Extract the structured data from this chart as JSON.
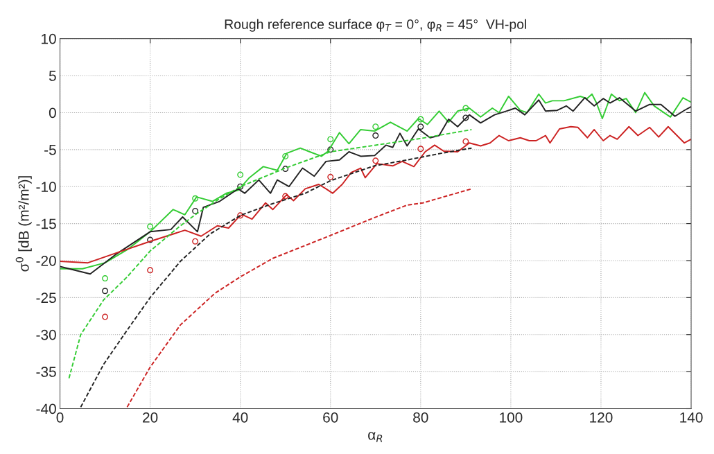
{
  "chart_data": {
    "type": "line",
    "title": "Rough reference surface φ$_{T}$ = 0°, φ$_{R}$ = 45°  VH-pol",
    "xlabel": "α$_{R}$",
    "ylabel": "σ$^{0}$ [dB (m²/m²)]",
    "xlim": [
      0,
      140
    ],
    "ylim": [
      -40,
      10
    ],
    "xticks": [
      0,
      20,
      40,
      60,
      80,
      100,
      120,
      140
    ],
    "yticks": [
      -40,
      -35,
      -30,
      -25,
      -20,
      -15,
      -10,
      -5,
      0,
      5,
      10
    ],
    "grid": true,
    "legend": false,
    "series": [
      {
        "color": "#33cc33",
        "line_style": "solid",
        "marker": "none",
        "x": [
          0,
          5,
          10,
          15,
          20,
          25.1,
          27.7,
          30.3,
          33.8,
          36.9,
          39.5,
          42,
          45.1,
          48.2,
          50.3,
          53.3,
          55.4,
          58,
          59.5,
          62,
          64.1,
          66.7,
          69.8,
          73.3,
          77,
          79.5,
          81.5,
          84.1,
          86.2,
          88.2,
          90.8,
          93.3,
          95.9,
          97.4,
          99.5,
          102.1,
          103.6,
          106.2,
          107.7,
          109.2,
          111.8,
          115.4,
          116.9,
          118,
          119,
          120.3,
          122.3,
          124.1,
          125.6,
          127.7,
          129.7,
          131.8,
          135.4,
          138.2,
          140
        ],
        "values": [
          -21.1,
          -21.1,
          -20.3,
          -18.5,
          -16.1,
          -13.1,
          -13.8,
          -11.4,
          -12.0,
          -10.9,
          -10.5,
          -8.8,
          -7.3,
          -7.8,
          -5.5,
          -4.8,
          -5.3,
          -5.9,
          -5.2,
          -2.7,
          -4.2,
          -2.3,
          -2.5,
          -1.3,
          -2.5,
          -0.8,
          -1.6,
          0.2,
          -1.3,
          0.2,
          0.6,
          -0.6,
          0.6,
          0,
          2.2,
          0.3,
          0,
          2.5,
          1.3,
          1.6,
          1.6,
          2.2,
          1.9,
          2.5,
          1.3,
          -0.8,
          2.5,
          1.6,
          1.9,
          0,
          2.7,
          0.9,
          -0.6,
          2.0,
          1.4
        ]
      },
      {
        "color": "#222222",
        "line_style": "solid",
        "marker": "none",
        "x": [
          0,
          6.7,
          12.3,
          20,
          24.6,
          27.2,
          30.5,
          31.8,
          35.4,
          39.5,
          41,
          44.1,
          46.7,
          48.2,
          50.8,
          53.8,
          56.4,
          59,
          62,
          64.1,
          66.7,
          69.8,
          72.3,
          73.8,
          75.4,
          77,
          79.5,
          82.1,
          84.1,
          86.2,
          88.2,
          90.8,
          93.3,
          96.4,
          99,
          101,
          103.1,
          106.2,
          107.7,
          110.3,
          112.3,
          113.8,
          116.4,
          118.5,
          120.5,
          122,
          124.1,
          127.7,
          130.8,
          133.3,
          136.4,
          138.5,
          140
        ],
        "values": [
          -20.8,
          -21.8,
          -19.2,
          -16.1,
          -15.8,
          -14.1,
          -16.1,
          -12.8,
          -12.0,
          -10.3,
          -10.9,
          -9.1,
          -10.9,
          -9.1,
          -10,
          -7.5,
          -8.6,
          -6.6,
          -6.4,
          -5.3,
          -5.9,
          -5.8,
          -4.4,
          -4.7,
          -2.8,
          -4.5,
          -2.2,
          -3.4,
          -3.1,
          -0.9,
          -1.9,
          -0.3,
          -1.4,
          -0.3,
          0.2,
          0.6,
          -0.3,
          1.7,
          0.2,
          0.3,
          0.9,
          0.2,
          2.0,
          0.9,
          1.9,
          1.3,
          2.0,
          0.2,
          1.1,
          1.1,
          -0.5,
          0.3,
          0.8
        ]
      },
      {
        "color": "#cc2222",
        "line_style": "solid",
        "marker": "none",
        "x": [
          0,
          6.2,
          12.3,
          20,
          27.7,
          31.3,
          34.9,
          37.4,
          39.5,
          40.5,
          42.6,
          45.6,
          47.2,
          50.3,
          51.8,
          54.4,
          57.4,
          59,
          60.5,
          62.6,
          64.6,
          66.7,
          67.7,
          70.3,
          73.8,
          75.9,
          78.5,
          81,
          83.1,
          85.1,
          88.2,
          90.8,
          93.3,
          95.4,
          97.4,
          99.5,
          102.1,
          104.1,
          105.6,
          107.7,
          108.7,
          110.8,
          113.3,
          114.9,
          117,
          118.5,
          120.5,
          122,
          123.6,
          126.2,
          128.2,
          130.8,
          132.8,
          134.9,
          138.5,
          140
        ],
        "values": [
          -20.1,
          -20.3,
          -19.0,
          -17.4,
          -15.9,
          -16.7,
          -15.3,
          -15.6,
          -14.2,
          -13.8,
          -14.4,
          -12.2,
          -13.1,
          -11.1,
          -11.9,
          -10.3,
          -9.7,
          -10.3,
          -10.9,
          -9.7,
          -8.1,
          -7.5,
          -8.8,
          -6.9,
          -7.2,
          -6.6,
          -7.3,
          -5.3,
          -4.4,
          -5.2,
          -5.3,
          -4.1,
          -4.5,
          -4.1,
          -3.1,
          -3.8,
          -3.4,
          -3.8,
          -3.8,
          -3.1,
          -4.1,
          -2.2,
          -1.9,
          -2.0,
          -3.4,
          -2.3,
          -3.8,
          -3.1,
          -3.6,
          -1.9,
          -3.1,
          -2.0,
          -3.3,
          -1.9,
          -4.1,
          -3.6
        ]
      },
      {
        "color": "#33cc33",
        "line_style": "dashed",
        "marker": "none",
        "x": [
          2,
          4.6,
          9.7,
          14.9,
          20,
          26.7,
          30,
          35,
          40,
          50,
          60,
          70,
          80,
          91.3
        ],
        "values": [
          -35.9,
          -30,
          -25.3,
          -22.2,
          -18.7,
          -15.3,
          -13.8,
          -11.8,
          -10,
          -7.5,
          -5.3,
          -4.4,
          -3.5,
          -2.3
        ]
      },
      {
        "color": "#222222",
        "line_style": "dashed",
        "marker": "none",
        "x": [
          4.6,
          9.7,
          14.9,
          20,
          26.7,
          33.3,
          40,
          47.2,
          54.4,
          60,
          69.7,
          77,
          84.6,
          91.3
        ],
        "values": [
          -39.8,
          -34,
          -29.4,
          -25,
          -20.1,
          -16.4,
          -13.9,
          -12.3,
          -10.9,
          -9.2,
          -7.2,
          -6.4,
          -5.5,
          -4.8
        ]
      },
      {
        "color": "#cc2222",
        "line_style": "dashed",
        "marker": "none",
        "x": [
          14.9,
          20,
          26.7,
          34.4,
          40,
          47.2,
          60,
          69.7,
          77,
          80.5,
          91.3
        ],
        "values": [
          -39.8,
          -34.4,
          -28.7,
          -24.4,
          -22.2,
          -19.7,
          -16.6,
          -14.2,
          -12.5,
          -12.2,
          -10.3
        ]
      },
      {
        "type": "scatter",
        "color": "#33cc33",
        "marker": "circle",
        "x": [
          10,
          20,
          30,
          40,
          50,
          60,
          70,
          80,
          90
        ],
        "values": [
          -22.4,
          -15.4,
          -11.6,
          -8.4,
          -5.9,
          -3.6,
          -1.9,
          -0.9,
          0.6
        ]
      },
      {
        "type": "scatter",
        "color": "#222222",
        "marker": "circle",
        "x": [
          10,
          20,
          30,
          40,
          50,
          60,
          70,
          80,
          90
        ],
        "values": [
          -24.1,
          -17.2,
          -13.3,
          -10,
          -7.6,
          -5.0,
          -3.1,
          -1.9,
          -0.7
        ]
      },
      {
        "type": "scatter",
        "color": "#cc2222",
        "marker": "circle",
        "x": [
          10,
          20,
          30,
          40,
          50,
          60,
          70,
          80,
          90
        ],
        "values": [
          -27.6,
          -21.3,
          -17.4,
          -13.9,
          -11.3,
          -8.7,
          -6.5,
          -4.9,
          -3.9
        ]
      }
    ]
  }
}
